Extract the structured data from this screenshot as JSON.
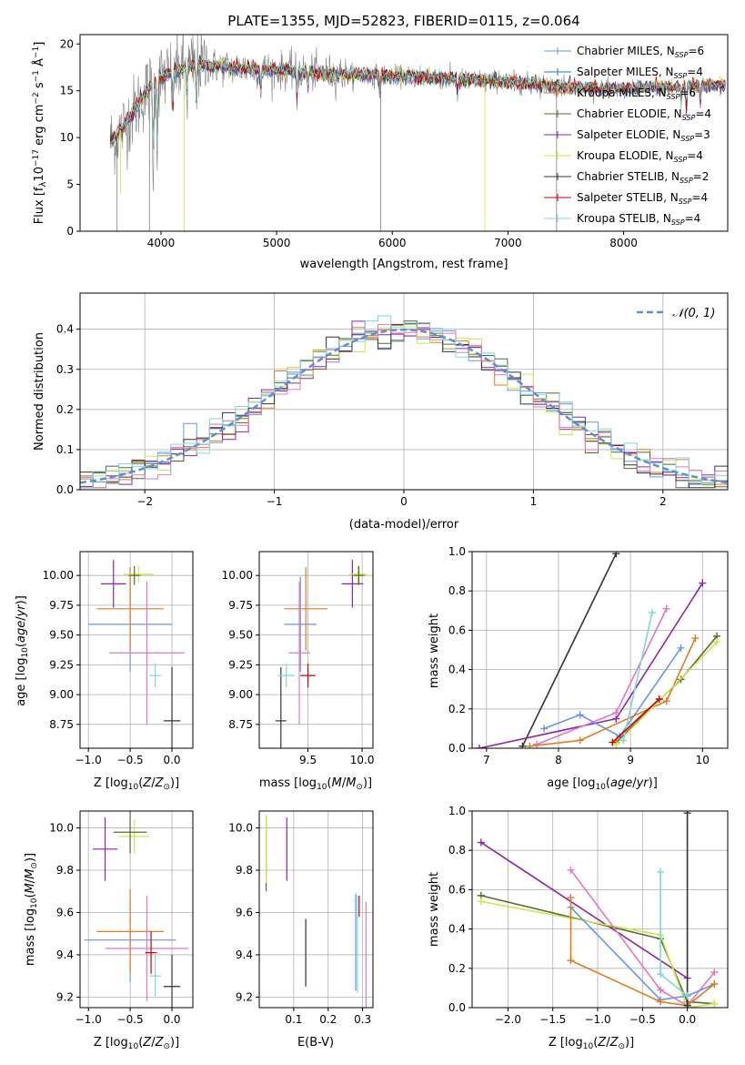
{
  "colors": {
    "chab_miles": "#6495ed",
    "salp_miles": "#1f77b4",
    "krou_miles": "#e07b20",
    "chab_elod": "#556b2f",
    "salp_elod": "#8e24aa",
    "krou_elod": "#c6e84a",
    "chab_stel": "#333333",
    "salp_stel": "#cc0000",
    "krou_stel": "#7fd6dc",
    "data_spec": "#808080",
    "pink": "#e377c2",
    "grid": "#b0b0b0",
    "normal": "#5b8fd8"
  },
  "chart_data": [
    {
      "id": "spectrum",
      "type": "line",
      "title": "PLATE=1355, MJD=52823, FIBERID=0115, z=0.064",
      "xlabel": "wavelength [Angstrom, rest frame]",
      "ylabel": "Flux [f",
      "ylabel_parts": [
        "Flux [f",
        "λ",
        "10",
        "−17",
        " erg cm",
        "−2",
        " s",
        "−1",
        " Å",
        "−1",
        "]"
      ],
      "xlim": [
        3300,
        8900
      ],
      "ylim": [
        0,
        21
      ],
      "xticks": [
        "4000",
        "5000",
        "6000",
        "7000",
        "8000"
      ],
      "yticks": [
        "0",
        "5",
        "10",
        "15",
        "20"
      ],
      "legend_position": "top-right",
      "legend": [
        {
          "label": "Chabrier MILES, N",
          "sub": "SSP",
          "val": "=6",
          "color_key": "chab_miles"
        },
        {
          "label": "Salpeter MILES, N",
          "sub": "SSP",
          "val": "=4",
          "color_key": "salp_miles"
        },
        {
          "label": "Kroupa MILES, N",
          "sub": "SSP",
          "val": "=6",
          "color_key": "krou_miles"
        },
        {
          "label": "Chabrier ELODIE, N",
          "sub": "SSP",
          "val": "=4",
          "color_key": "chab_elod"
        },
        {
          "label": "Salpeter ELODIE, N",
          "sub": "SSP",
          "val": "=3",
          "color_key": "salp_elod"
        },
        {
          "label": "Kroupa ELODIE, N",
          "sub": "SSP",
          "val": "=4",
          "color_key": "krou_elod"
        },
        {
          "label": "Chabrier STELIB, N",
          "sub": "SSP",
          "val": "=2",
          "color_key": "chab_stel"
        },
        {
          "label": "Salpeter STELIB, N",
          "sub": "SSP",
          "val": "=4",
          "color_key": "salp_stel"
        },
        {
          "label": "Kroupa STELIB, N",
          "sub": "SSP",
          "val": "=4",
          "color_key": "krou_stel"
        }
      ],
      "continuum": [
        [
          3560,
          9.5
        ],
        [
          3700,
          11.5
        ],
        [
          3850,
          14.5
        ],
        [
          3950,
          16.0
        ],
        [
          4100,
          17.0
        ],
        [
          4300,
          17.8
        ],
        [
          4600,
          17.5
        ],
        [
          5000,
          17.2
        ],
        [
          5500,
          16.8
        ],
        [
          6000,
          16.6
        ],
        [
          6500,
          16.3
        ],
        [
          7000,
          16.0
        ],
        [
          7400,
          15.5
        ],
        [
          7800,
          15.2
        ],
        [
          8300,
          15.3
        ],
        [
          8800,
          15.6
        ]
      ],
      "absorption_lines": [
        [
          3933,
          0.65
        ],
        [
          3968,
          0.55
        ],
        [
          4102,
          0.3
        ],
        [
          4226,
          0.2
        ],
        [
          4305,
          0.25
        ],
        [
          4861,
          0.15
        ],
        [
          5175,
          0.2
        ],
        [
          5270,
          0.1
        ],
        [
          5893,
          0.15
        ],
        [
          6563,
          0.1
        ],
        [
          8498,
          0.15
        ],
        [
          8542,
          0.2
        ],
        [
          8662,
          0.15
        ]
      ],
      "spikes": [
        [
          3620,
          0
        ],
        [
          3650,
          4
        ],
        [
          3900,
          0
        ],
        [
          4200,
          0
        ],
        [
          5900,
          0
        ],
        [
          6800,
          0
        ],
        [
          7420,
          0
        ]
      ]
    },
    {
      "id": "residuals",
      "type": "histogram",
      "xlabel": "(data-model)/error",
      "ylabel": "Normed distribution",
      "xlim": [
        -2.5,
        2.5
      ],
      "ylim": [
        0,
        0.49
      ],
      "xticks": [
        -2,
        -1,
        0,
        1,
        2
      ],
      "xtick_labels": [
        "−2",
        "−1",
        "0",
        "1",
        "2"
      ],
      "yticks": [
        0.0,
        0.1,
        0.2,
        0.3,
        0.4
      ],
      "ytick_labels": [
        "0.0",
        "0.1",
        "0.2",
        "0.3",
        "0.4"
      ],
      "legend_position": "top-right",
      "legend_label": "𝒩(0, 1)",
      "bin_width": 0.1
    },
    {
      "id": "age_vs_Z",
      "type": "errorbar",
      "xlabel": "Z [log10(Z/Z⊙)]",
      "ylabel": "age  [log10(age/yr)]",
      "xlim": [
        -1.1,
        0.25
      ],
      "ylim": [
        8.55,
        10.2
      ],
      "xticks": [
        -1.0,
        -0.5,
        0.0
      ],
      "xtick_labels": [
        "−1.0",
        "−0.5",
        "0.0"
      ],
      "yticks": [
        8.75,
        9.0,
        9.25,
        9.5,
        9.75,
        10.0
      ],
      "ytick_labels": [
        "8.75",
        "9.00",
        "9.25",
        "9.50",
        "9.75",
        "10.00"
      ],
      "points": [
        {
          "c": "chab_miles",
          "x": -0.5,
          "xe": 0.5,
          "y": 9.59,
          "ye": 0.4
        },
        {
          "c": "krou_miles",
          "x": -0.5,
          "xe": 0.4,
          "y": 9.72,
          "ye": 0.35
        },
        {
          "c": "pink",
          "x": -0.3,
          "xe": 0.45,
          "y": 9.35,
          "ye": 0.6
        },
        {
          "c": "chab_stel",
          "x": 0.0,
          "xe": 0.1,
          "y": 8.78,
          "ye": 0.45
        },
        {
          "c": "krou_stel",
          "x": -0.2,
          "xe": 0.07,
          "y": 9.16,
          "ye": 0.1
        },
        {
          "c": "salp_elod",
          "x": -0.7,
          "xe": 0.15,
          "y": 9.93,
          "ye": 0.2
        },
        {
          "c": "krou_elod",
          "x": -0.4,
          "xe": 0.18,
          "y": 10.01,
          "ye": 0.07
        },
        {
          "c": "chab_elod",
          "x": -0.45,
          "xe": 0.07,
          "y": 10.0,
          "ye": 0.08
        }
      ]
    },
    {
      "id": "age_vs_mass",
      "type": "errorbar",
      "xlabel": "mass [log10(M/M⊙)]",
      "ylabel": "",
      "xlim": [
        9.05,
        10.1
      ],
      "ylim": [
        8.55,
        10.2
      ],
      "xticks": [
        9.5,
        10.0
      ],
      "xtick_labels": [
        "9.5",
        "10.0"
      ],
      "yticks": [
        8.75,
        9.0,
        9.25,
        9.5,
        9.75,
        10.0
      ],
      "ytick_labels": [
        "8.75",
        "9.00",
        "9.25",
        "9.50",
        "9.75",
        "10.00"
      ],
      "points": [
        {
          "c": "chab_miles",
          "x": 9.43,
          "xe": 0.15,
          "y": 9.59,
          "ye": 0.4
        },
        {
          "c": "krou_miles",
          "x": 9.48,
          "xe": 0.2,
          "y": 9.72,
          "ye": 0.35
        },
        {
          "c": "pink",
          "x": 9.42,
          "xe": 0.1,
          "y": 9.35,
          "ye": 0.6
        },
        {
          "c": "chab_stel",
          "x": 9.25,
          "xe": 0.05,
          "y": 8.78,
          "ye": 0.45
        },
        {
          "c": "krou_stel",
          "x": 9.3,
          "xe": 0.08,
          "y": 9.16,
          "ye": 0.1
        },
        {
          "c": "salp_stel",
          "x": 9.5,
          "xe": 0.07,
          "y": 9.16,
          "ye": 0.1
        },
        {
          "c": "salp_elod",
          "x": 9.91,
          "xe": 0.1,
          "y": 9.93,
          "ye": 0.2
        },
        {
          "c": "krou_elod",
          "x": 9.96,
          "xe": 0.08,
          "y": 10.01,
          "ye": 0.07
        },
        {
          "c": "chab_elod",
          "x": 9.97,
          "xe": 0.05,
          "y": 10.0,
          "ye": 0.08
        }
      ]
    },
    {
      "id": "weight_vs_age",
      "type": "line",
      "xlabel": "age  [log10(age/yr)]",
      "ylabel": "mass weight",
      "xlim": [
        6.8,
        10.35
      ],
      "ylim": [
        0,
        1
      ],
      "xticks": [
        7,
        8,
        9,
        10
      ],
      "xtick_labels": [
        "7",
        "8",
        "9",
        "10"
      ],
      "yticks": [
        0,
        0.2,
        0.4,
        0.6,
        0.8,
        1.0
      ],
      "ytick_labels": [
        "0.0",
        "0.2",
        "0.4",
        "0.6",
        "0.8",
        "1.0"
      ],
      "series": [
        {
          "c": "chab_stel",
          "x": [
            7.5,
            8.8
          ],
          "y": [
            0.01,
            0.99
          ]
        },
        {
          "c": "salp_elod",
          "x": [
            6.9,
            8.8,
            10.0
          ],
          "y": [
            0.0,
            0.15,
            0.84
          ]
        },
        {
          "c": "pink",
          "x": [
            7.7,
            8.8,
            9.5
          ],
          "y": [
            0.02,
            0.18,
            0.71
          ]
        },
        {
          "c": "chab_miles",
          "x": [
            7.8,
            8.3,
            8.85,
            9.7
          ],
          "y": [
            0.1,
            0.17,
            0.06,
            0.51
          ]
        },
        {
          "c": "krou_miles",
          "x": [
            7.6,
            8.3,
            9.5,
            9.9
          ],
          "y": [
            0.01,
            0.04,
            0.24,
            0.56
          ]
        },
        {
          "c": "chab_elod",
          "x": [
            8.8,
            9.7,
            10.2
          ],
          "y": [
            0.03,
            0.35,
            0.57
          ]
        },
        {
          "c": "krou_elod",
          "x": [
            8.8,
            10.2
          ],
          "y": [
            0.02,
            0.54
          ]
        },
        {
          "c": "krou_stel",
          "x": [
            8.9,
            9.3
          ],
          "y": [
            0.04,
            0.69
          ]
        },
        {
          "c": "salp_stel",
          "x": [
            8.75,
            9.4
          ],
          "y": [
            0.03,
            0.25
          ]
        }
      ]
    },
    {
      "id": "mass_vs_Z",
      "type": "errorbar",
      "xlabel": "Z [log10(Z/Z⊙)]",
      "ylabel": "mass [log10(M/M⊙)]",
      "xlim": [
        -1.1,
        0.25
      ],
      "ylim": [
        9.15,
        10.08
      ],
      "xticks": [
        -1.0,
        -0.5,
        0.0
      ],
      "xtick_labels": [
        "−1.0",
        "−0.5",
        "0.0"
      ],
      "yticks": [
        9.2,
        9.4,
        9.6,
        9.8,
        10.0
      ],
      "ytick_labels": [
        "9.2",
        "9.4",
        "9.6",
        "9.8",
        "10.0"
      ],
      "points": [
        {
          "c": "chab_miles",
          "x": -0.5,
          "xe": 0.55,
          "y": 9.47,
          "ye": 0.2
        },
        {
          "c": "krou_miles",
          "x": -0.5,
          "xe": 0.4,
          "y": 9.51,
          "ye": 0.2
        },
        {
          "c": "pink",
          "x": -0.3,
          "xe": 0.5,
          "y": 9.43,
          "ye": 0.25
        },
        {
          "c": "chab_stel",
          "x": 0.0,
          "xe": 0.1,
          "y": 9.25,
          "ye": 0.15
        },
        {
          "c": "krou_stel",
          "x": -0.2,
          "xe": 0.07,
          "y": 9.3,
          "ye": 0.1
        },
        {
          "c": "salp_stel",
          "x": -0.25,
          "xe": 0.07,
          "y": 9.41,
          "ye": 0.1
        },
        {
          "c": "salp_elod",
          "x": -0.8,
          "xe": 0.15,
          "y": 9.9,
          "ye": 0.15
        },
        {
          "c": "krou_elod",
          "x": -0.45,
          "xe": 0.18,
          "y": 9.96,
          "ye": 0.08
        },
        {
          "c": "chab_elod",
          "x": -0.5,
          "xe": 0.2,
          "y": 9.98,
          "ye": 0.1
        }
      ]
    },
    {
      "id": "mass_vs_ebv",
      "type": "errorbar",
      "xlabel": "E(B-V)",
      "ylabel": "",
      "xlim": [
        0.0,
        0.33
      ],
      "ylim": [
        9.15,
        10.08
      ],
      "xticks": [
        0.1,
        0.2,
        0.3
      ],
      "xtick_labels": [
        "0.1",
        "0.2",
        "0.3"
      ],
      "yticks": [
        9.2,
        9.4,
        9.6,
        9.8,
        10.0
      ],
      "ytick_labels": [
        "9.2",
        "9.4",
        "9.6",
        "9.8",
        "10.0"
      ],
      "points": [
        {
          "c": "chab_elod",
          "x": 0.02,
          "xe": 0,
          "y": 9.88,
          "ye": 0.18
        },
        {
          "c": "krou_elod",
          "x": 0.02,
          "xe": 0,
          "y": 9.9,
          "ye": 0.16
        },
        {
          "c": "salp_elod",
          "x": 0.08,
          "xe": 0,
          "y": 9.9,
          "ye": 0.15
        },
        {
          "c": "chab_stel",
          "x": 0.135,
          "xe": 0,
          "y": 9.41,
          "ye": 0.16
        },
        {
          "c": "chab_miles",
          "x": 0.28,
          "xe": 0,
          "y": 9.46,
          "ye": 0.23
        },
        {
          "c": "krou_stel",
          "x": 0.285,
          "xe": 0,
          "y": 9.45,
          "ye": 0.23
        },
        {
          "c": "salp_stel",
          "x": 0.29,
          "xe": 0,
          "y": 9.63,
          "ye": 0.05
        },
        {
          "c": "pink",
          "x": 0.31,
          "xe": 0,
          "y": 9.4,
          "ye": 0.25
        }
      ]
    },
    {
      "id": "weight_vs_Z",
      "type": "line",
      "xlabel": "Z [log10(Z/Z⊙)]",
      "ylabel": "mass weight",
      "xlim": [
        -2.4,
        0.45
      ],
      "ylim": [
        0,
        1
      ],
      "xticks": [
        -2.0,
        -1.5,
        -1.0,
        -0.5,
        0.0
      ],
      "xtick_labels": [
        "−2.0",
        "−1.5",
        "−1.0",
        "−0.5",
        "0.0"
      ],
      "yticks": [
        0,
        0.2,
        0.4,
        0.6,
        0.8,
        1.0
      ],
      "ytick_labels": [
        "0.0",
        "0.2",
        "0.4",
        "0.6",
        "0.8",
        "1.0"
      ],
      "series": [
        {
          "c": "salp_elod",
          "x": [
            -2.3,
            0.0
          ],
          "y": [
            0.84,
            0.15
          ]
        },
        {
          "c": "chab_elod",
          "x": [
            -2.3,
            -0.3,
            0.0,
            0.3
          ],
          "y": [
            0.57,
            0.35,
            0.03,
            0.02
          ]
        },
        {
          "c": "krou_elod",
          "x": [
            -2.3,
            -0.3,
            0.0,
            0.3
          ],
          "y": [
            0.54,
            0.37,
            0.0,
            0.02
          ]
        },
        {
          "c": "pink",
          "x": [
            -1.3,
            -0.3,
            0.0,
            0.3
          ],
          "y": [
            0.7,
            0.09,
            0.01,
            0.18
          ]
        },
        {
          "c": "chab_miles",
          "x": [
            -1.3,
            -0.3,
            0.0,
            0.3
          ],
          "y": [
            0.51,
            0.04,
            0.06,
            0.12
          ]
        },
        {
          "c": "krou_miles",
          "x": [
            -1.3,
            -1.3,
            -0.3,
            0.0,
            0.3
          ],
          "y": [
            0.56,
            0.24,
            0.03,
            0.01,
            0.12
          ]
        },
        {
          "c": "chab_stel",
          "x": [
            0.0,
            0.0
          ],
          "y": [
            0.01,
            0.99
          ]
        },
        {
          "c": "krou_stel",
          "x": [
            -0.3,
            -0.3,
            0.0
          ],
          "y": [
            0.69,
            0.17,
            0.06
          ]
        }
      ]
    }
  ]
}
